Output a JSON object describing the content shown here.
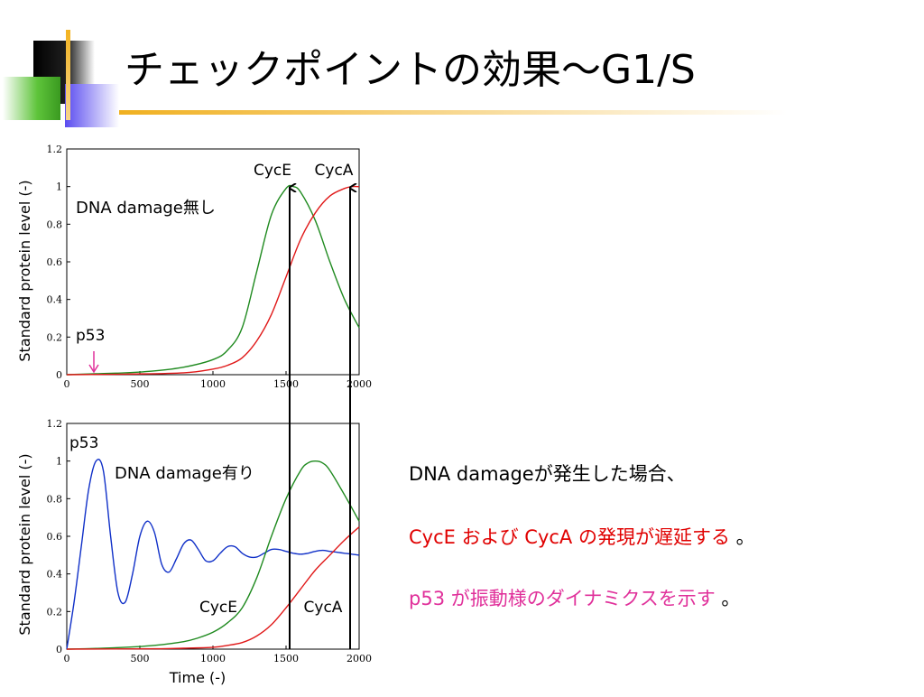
{
  "slide": {
    "title": "チェックポイントの効果～G1/S",
    "notes": [
      {
        "text": "DNA damageが発生した場合、",
        "color": "#000000"
      },
      {
        "parts": [
          {
            "text": "CycE",
            "color": "#e00000"
          },
          {
            "text": "および",
            "color": "#e00000"
          },
          {
            "text": "CycA",
            "color": "#e00000"
          },
          {
            "text": "の発現が遅延する",
            "color": "#e00000"
          },
          {
            "text": "。",
            "color": "#000000"
          }
        ]
      },
      {
        "parts": [
          {
            "text": "p53",
            "color": "#e0309a"
          },
          {
            "text": "が振動様のダイナミクスを示す",
            "color": "#e0309a"
          },
          {
            "text": "。",
            "color": "#000000"
          }
        ]
      }
    ]
  },
  "colors": {
    "cycE": "#1f8a1f",
    "cycA": "#e01818",
    "p53": "#1030c8",
    "arrow": "#e0309a"
  },
  "chart_data": [
    {
      "type": "line",
      "title": "",
      "xlabel": "",
      "ylabel": "Standard protein level (-)",
      "xlim": [
        0,
        2000
      ],
      "ylim": [
        0,
        1.2
      ],
      "xticks": [
        "0",
        "500",
        "1000",
        "1500",
        "2000"
      ],
      "yticks": [
        "0",
        "0.2",
        "0.4",
        "0.6",
        "0.8",
        "1",
        "1.2"
      ],
      "annotations": [
        "CycE",
        "CycA",
        "DNA damage無し",
        "p53"
      ],
      "series": [
        {
          "name": "CycE",
          "x": [
            0,
            200,
            400,
            600,
            800,
            1000,
            1100,
            1200,
            1300,
            1400,
            1500,
            1550,
            1600,
            1700,
            1800,
            1900,
            2000
          ],
          "y": [
            0,
            0.005,
            0.01,
            0.02,
            0.04,
            0.08,
            0.13,
            0.25,
            0.55,
            0.85,
            0.99,
            1.0,
            0.97,
            0.82,
            0.6,
            0.4,
            0.25
          ]
        },
        {
          "name": "CycA",
          "x": [
            0,
            400,
            800,
            1000,
            1100,
            1200,
            1300,
            1400,
            1500,
            1600,
            1700,
            1800,
            1900,
            1950,
            2000
          ],
          "y": [
            0,
            0.003,
            0.01,
            0.03,
            0.05,
            0.09,
            0.18,
            0.32,
            0.52,
            0.72,
            0.86,
            0.95,
            0.99,
            1.0,
            1.0
          ]
        }
      ]
    },
    {
      "type": "line",
      "title": "",
      "xlabel": "Time (-)",
      "ylabel": "Standard protein level (-)",
      "xlim": [
        0,
        2000
      ],
      "ylim": [
        0,
        1.2
      ],
      "xticks": [
        "0",
        "500",
        "1000",
        "1500",
        "2000"
      ],
      "yticks": [
        "0",
        "0.2",
        "0.4",
        "0.6",
        "0.8",
        "1",
        "1.2"
      ],
      "annotations": [
        "p53",
        "DNA damage有り",
        "CycE",
        "CycA"
      ],
      "series": [
        {
          "name": "p53",
          "x": [
            0,
            50,
            100,
            150,
            200,
            250,
            300,
            350,
            400,
            450,
            500,
            550,
            600,
            650,
            700,
            750,
            800,
            850,
            900,
            950,
            1000,
            1050,
            1100,
            1150,
            1200,
            1250,
            1300,
            1350,
            1400,
            1450,
            1500,
            1550,
            1600,
            1650,
            1700,
            1750,
            1800,
            1850,
            1900,
            1950,
            2000
          ],
          "y": [
            0,
            0.25,
            0.55,
            0.85,
            1.0,
            0.95,
            0.6,
            0.3,
            0.25,
            0.4,
            0.6,
            0.68,
            0.62,
            0.45,
            0.41,
            0.48,
            0.56,
            0.58,
            0.53,
            0.47,
            0.47,
            0.51,
            0.545,
            0.545,
            0.51,
            0.49,
            0.49,
            0.51,
            0.53,
            0.53,
            0.52,
            0.51,
            0.505,
            0.51,
            0.52,
            0.525,
            0.52,
            0.515,
            0.51,
            0.505,
            0.5
          ]
        },
        {
          "name": "CycE",
          "x": [
            0,
            200,
            400,
            600,
            800,
            900,
            1000,
            1100,
            1200,
            1300,
            1400,
            1500,
            1600,
            1650,
            1700,
            1750,
            1800,
            1900,
            2000
          ],
          "y": [
            0,
            0.004,
            0.01,
            0.02,
            0.04,
            0.06,
            0.09,
            0.14,
            0.22,
            0.38,
            0.6,
            0.8,
            0.95,
            0.99,
            1.0,
            0.99,
            0.95,
            0.82,
            0.68
          ]
        },
        {
          "name": "CycA",
          "x": [
            0,
            600,
            800,
            1000,
            1100,
            1200,
            1300,
            1400,
            1500,
            1600,
            1700,
            1800,
            1900,
            2000
          ],
          "y": [
            0,
            0.002,
            0.005,
            0.01,
            0.02,
            0.035,
            0.07,
            0.13,
            0.22,
            0.32,
            0.42,
            0.5,
            0.58,
            0.65
          ]
        }
      ]
    }
  ]
}
